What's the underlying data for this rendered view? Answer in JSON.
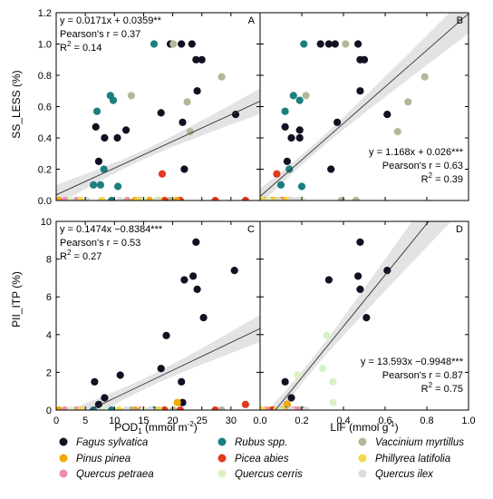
{
  "colors": {
    "Fagus sylvatica": "#111122",
    "Pinus pinea": "#f2a900",
    "Quercus petraea": "#f08cab",
    "Rubus spp.": "#1b7f7f",
    "Picea abies": "#e03a1e",
    "Quercus cerris": "#d9f2c4",
    "Vaccinium myrtillus": "#b5b898",
    "Phillyrea latifolia": "#f2d84a",
    "Quercus ilex": "#dedbdc"
  },
  "legend": [
    "Fagus sylvatica",
    "Rubus spp.",
    "Vaccinium myrtillus",
    "Pinus pinea",
    "Picea abies",
    "Phillyrea latifolia",
    "Quercus petraea",
    "Quercus cerris",
    "Quercus ilex"
  ],
  "ylabels": {
    "top": "SS_LESS (%)",
    "bottom": "PII_ITP (%)"
  },
  "xlabels": {
    "left_main": "POD",
    "left_sub": "1",
    "left_unit": " (mmol m",
    "left_sup": "-2",
    "left_close": ")",
    "right_main": "LIF (mmol g",
    "right_sup": "-1",
    "right_close": ")"
  },
  "chart_data": [
    {
      "id": "A",
      "type": "scatter",
      "xlabel": "POD1 (mmol m-2)",
      "ylabel": "SS_LESS (%)",
      "xlim": [
        0,
        35
      ],
      "ylim": [
        0,
        1.2
      ],
      "xticks": [
        0,
        5,
        10,
        15,
        20,
        25,
        30
      ],
      "yticks": [
        0.0,
        0.2,
        0.4,
        0.6,
        0.8,
        1.0,
        1.2
      ],
      "fit": {
        "slope": 0.0171,
        "intercept": 0.0359
      },
      "annotation": [
        "y = 0.0171x + 0.0359**",
        "Pearson's r = 0.37",
        "R",
        "2",
        " = 0.14"
      ],
      "ann_pos": "top-left",
      "points": [
        {
          "s": "Fagus sylvatica",
          "x": 6.8,
          "y": 0.47
        },
        {
          "s": "Fagus sylvatica",
          "x": 7.3,
          "y": 0.25
        },
        {
          "s": "Fagus sylvatica",
          "x": 8.3,
          "y": 0.4
        },
        {
          "s": "Fagus sylvatica",
          "x": 10.5,
          "y": 0.4
        },
        {
          "s": "Fagus sylvatica",
          "x": 12.0,
          "y": 0.45
        },
        {
          "s": "Fagus sylvatica",
          "x": 18.0,
          "y": 0.56
        },
        {
          "s": "Fagus sylvatica",
          "x": 19.6,
          "y": 1.0
        },
        {
          "s": "Fagus sylvatica",
          "x": 21.5,
          "y": 1.0
        },
        {
          "s": "Fagus sylvatica",
          "x": 21.7,
          "y": 0.5
        },
        {
          "s": "Fagus sylvatica",
          "x": 22.0,
          "y": 0.2
        },
        {
          "s": "Fagus sylvatica",
          "x": 23.3,
          "y": 1.0
        },
        {
          "s": "Fagus sylvatica",
          "x": 24.0,
          "y": 0.9
        },
        {
          "s": "Fagus sylvatica",
          "x": 24.2,
          "y": 0.7
        },
        {
          "s": "Fagus sylvatica",
          "x": 25.0,
          "y": 0.9
        },
        {
          "s": "Fagus sylvatica",
          "x": 30.8,
          "y": 0.55
        },
        {
          "s": "Rubus spp.",
          "x": 6.4,
          "y": 0.1
        },
        {
          "s": "Rubus spp.",
          "x": 7.0,
          "y": 0.57
        },
        {
          "s": "Rubus spp.",
          "x": 7.6,
          "y": 0.1
        },
        {
          "s": "Rubus spp.",
          "x": 8.2,
          "y": 0.2
        },
        {
          "s": "Rubus spp.",
          "x": 9.3,
          "y": 0.67
        },
        {
          "s": "Rubus spp.",
          "x": 9.8,
          "y": 0.64
        },
        {
          "s": "Rubus spp.",
          "x": 10.6,
          "y": 0.09
        },
        {
          "s": "Rubus spp.",
          "x": 16.8,
          "y": 1.0
        },
        {
          "s": "Rubus spp.",
          "x": 9.5,
          "y": 0.0
        },
        {
          "s": "Vaccinium myrtillus",
          "x": 12.9,
          "y": 0.67
        },
        {
          "s": "Vaccinium myrtillus",
          "x": 20.1,
          "y": 1.0
        },
        {
          "s": "Vaccinium myrtillus",
          "x": 22.5,
          "y": 0.63
        },
        {
          "s": "Vaccinium myrtillus",
          "x": 23.0,
          "y": 0.44
        },
        {
          "s": "Vaccinium myrtillus",
          "x": 28.4,
          "y": 0.79
        },
        {
          "s": "Vaccinium myrtillus",
          "x": 19.5,
          "y": 0.0
        },
        {
          "s": "Picea abies",
          "x": 18.2,
          "y": 0.17
        },
        {
          "s": "Picea abies",
          "x": 21.3,
          "y": 0.0
        },
        {
          "s": "Picea abies",
          "x": 27.3,
          "y": 0.0
        },
        {
          "s": "Picea abies",
          "x": 32.5,
          "y": 0.0
        },
        {
          "s": "Picea abies",
          "x": 18.6,
          "y": 0.0
        },
        {
          "s": "Pinus pinea",
          "x": 0.5,
          "y": 0.0
        },
        {
          "s": "Pinus pinea",
          "x": 20.7,
          "y": 0.0
        },
        {
          "s": "Pinus pinea",
          "x": 13.5,
          "y": 0.0
        },
        {
          "s": "Pinus pinea",
          "x": 16.0,
          "y": 0.0
        },
        {
          "s": "Quercus petraea",
          "x": 1.5,
          "y": 0.0
        },
        {
          "s": "Quercus petraea",
          "x": 3.5,
          "y": 0.0
        },
        {
          "s": "Quercus petraea",
          "x": 12.2,
          "y": 0.0
        },
        {
          "s": "Quercus petraea",
          "x": 14.5,
          "y": 0.0
        },
        {
          "s": "Quercus cerris",
          "x": 2.5,
          "y": 0.0
        },
        {
          "s": "Quercus cerris",
          "x": 8.0,
          "y": 0.0
        },
        {
          "s": "Quercus cerris",
          "x": 15.0,
          "y": 0.0
        },
        {
          "s": "Phillyrea latifolia",
          "x": 4.2,
          "y": 0.0
        },
        {
          "s": "Phillyrea latifolia",
          "x": 7.8,
          "y": 0.0
        },
        {
          "s": "Phillyrea latifolia",
          "x": 14.0,
          "y": 0.0
        },
        {
          "s": "Phillyrea latifolia",
          "x": 17.6,
          "y": 0.0
        },
        {
          "s": "Quercus ilex",
          "x": 5.2,
          "y": 0.0
        },
        {
          "s": "Quercus ilex",
          "x": 11.0,
          "y": 0.0
        },
        {
          "s": "Quercus ilex",
          "x": 17.2,
          "y": 0.0
        }
      ]
    },
    {
      "id": "B",
      "type": "scatter",
      "xlabel": "LIF (mmol g-1)",
      "ylabel": "SS_LESS (%)",
      "xlim": [
        0,
        1.0
      ],
      "ylim": [
        0,
        1.2
      ],
      "xticks": [
        0.0,
        0.2,
        0.4,
        0.6,
        0.8,
        1.0
      ],
      "yticks": [
        0.0,
        0.2,
        0.4,
        0.6,
        0.8,
        1.0,
        1.2
      ],
      "fit": {
        "slope": 1.168,
        "intercept": 0.026
      },
      "annotation": [
        "y = 1.168x + 0.026***",
        "Pearson's r = 0.63",
        "R",
        "2",
        " = 0.39"
      ],
      "ann_pos": "bottom-right",
      "points": [
        {
          "s": "Fagus sylvatica",
          "x": 0.12,
          "y": 0.47
        },
        {
          "s": "Fagus sylvatica",
          "x": 0.13,
          "y": 0.25
        },
        {
          "s": "Fagus sylvatica",
          "x": 0.15,
          "y": 0.4
        },
        {
          "s": "Fagus sylvatica",
          "x": 0.19,
          "y": 0.4
        },
        {
          "s": "Fagus sylvatica",
          "x": 0.19,
          "y": 0.45
        },
        {
          "s": "Fagus sylvatica",
          "x": 0.29,
          "y": 1.0
        },
        {
          "s": "Fagus sylvatica",
          "x": 0.33,
          "y": 1.0
        },
        {
          "s": "Fagus sylvatica",
          "x": 0.34,
          "y": 0.2
        },
        {
          "s": "Fagus sylvatica",
          "x": 0.36,
          "y": 1.0
        },
        {
          "s": "Fagus sylvatica",
          "x": 0.37,
          "y": 0.5
        },
        {
          "s": "Fagus sylvatica",
          "x": 0.47,
          "y": 1.0
        },
        {
          "s": "Fagus sylvatica",
          "x": 0.48,
          "y": 0.9
        },
        {
          "s": "Fagus sylvatica",
          "x": 0.48,
          "y": 0.7
        },
        {
          "s": "Fagus sylvatica",
          "x": 0.5,
          "y": 0.9
        },
        {
          "s": "Fagus sylvatica",
          "x": 0.61,
          "y": 0.55
        },
        {
          "s": "Rubus spp.",
          "x": 0.1,
          "y": 0.1
        },
        {
          "s": "Rubus spp.",
          "x": 0.12,
          "y": 0.57
        },
        {
          "s": "Rubus spp.",
          "x": 0.14,
          "y": 0.2
        },
        {
          "s": "Rubus spp.",
          "x": 0.16,
          "y": 0.67
        },
        {
          "s": "Rubus spp.",
          "x": 0.19,
          "y": 0.64
        },
        {
          "s": "Rubus spp.",
          "x": 0.2,
          "y": 0.09
        },
        {
          "s": "Rubus spp.",
          "x": 0.21,
          "y": 1.0
        },
        {
          "s": "Vaccinium myrtillus",
          "x": 0.22,
          "y": 0.67
        },
        {
          "s": "Vaccinium myrtillus",
          "x": 0.41,
          "y": 1.0
        },
        {
          "s": "Vaccinium myrtillus",
          "x": 0.66,
          "y": 0.44
        },
        {
          "s": "Vaccinium myrtillus",
          "x": 0.71,
          "y": 0.63
        },
        {
          "s": "Vaccinium myrtillus",
          "x": 0.79,
          "y": 0.79
        },
        {
          "s": "Vaccinium myrtillus",
          "x": 0.39,
          "y": 0.0
        },
        {
          "s": "Vaccinium myrtillus",
          "x": 0.46,
          "y": 0.0
        },
        {
          "s": "Picea abies",
          "x": 0.08,
          "y": 0.17
        },
        {
          "s": "Picea abies",
          "x": 0.06,
          "y": 0.0
        },
        {
          "s": "Picea abies",
          "x": 0.1,
          "y": 0.0
        },
        {
          "s": "Pinus pinea",
          "x": 0.02,
          "y": 0.0
        },
        {
          "s": "Pinus pinea",
          "x": 0.05,
          "y": 0.0
        },
        {
          "s": "Pinus pinea",
          "x": 0.12,
          "y": 0.0
        },
        {
          "s": "Quercus petraea",
          "x": 0.03,
          "y": 0.0
        },
        {
          "s": "Quercus petraea",
          "x": 0.08,
          "y": 0.0
        },
        {
          "s": "Quercus petraea",
          "x": 0.14,
          "y": 0.0
        },
        {
          "s": "Quercus cerris",
          "x": 0.04,
          "y": 0.0
        },
        {
          "s": "Quercus cerris",
          "x": 0.17,
          "y": 0.0
        },
        {
          "s": "Quercus cerris",
          "x": 0.2,
          "y": 0.0
        },
        {
          "s": "Phillyrea latifolia",
          "x": 0.01,
          "y": 0.0
        },
        {
          "s": "Phillyrea latifolia",
          "x": 0.07,
          "y": 0.0
        },
        {
          "s": "Phillyrea latifolia",
          "x": 0.13,
          "y": 0.0
        },
        {
          "s": "Quercus ilex",
          "x": 0.09,
          "y": 0.0
        },
        {
          "s": "Quercus ilex",
          "x": 0.15,
          "y": 0.0
        },
        {
          "s": "Quercus ilex",
          "x": 0.18,
          "y": 0.0
        }
      ]
    },
    {
      "id": "C",
      "type": "scatter",
      "xlabel": "POD1 (mmol m-2)",
      "ylabel": "PII_ITP (%)",
      "xlim": [
        0,
        35
      ],
      "ylim": [
        0,
        10
      ],
      "xticks": [
        0,
        5,
        10,
        15,
        20,
        25,
        30
      ],
      "yticks": [
        0,
        2,
        4,
        6,
        8,
        10
      ],
      "fit": {
        "slope": 0.1474,
        "intercept": -0.8384
      },
      "annotation": [
        "y = 0.1474x −0.8384***",
        "Pearson's r = 0.53",
        "R",
        "2",
        " = 0.27"
      ],
      "ann_pos": "top-left",
      "points": [
        {
          "s": "Fagus sylvatica",
          "x": 6.6,
          "y": 1.5
        },
        {
          "s": "Fagus sylvatica",
          "x": 7.3,
          "y": 0.3
        },
        {
          "s": "Fagus sylvatica",
          "x": 8.3,
          "y": 0.65
        },
        {
          "s": "Fagus sylvatica",
          "x": 11.0,
          "y": 1.85
        },
        {
          "s": "Fagus sylvatica",
          "x": 18.0,
          "y": 2.2
        },
        {
          "s": "Fagus sylvatica",
          "x": 18.9,
          "y": 3.95
        },
        {
          "s": "Fagus sylvatica",
          "x": 21.5,
          "y": 1.5
        },
        {
          "s": "Fagus sylvatica",
          "x": 21.7,
          "y": 0.4
        },
        {
          "s": "Fagus sylvatica",
          "x": 22.0,
          "y": 6.9
        },
        {
          "s": "Fagus sylvatica",
          "x": 23.5,
          "y": 7.1
        },
        {
          "s": "Fagus sylvatica",
          "x": 24.0,
          "y": 8.9
        },
        {
          "s": "Fagus sylvatica",
          "x": 24.2,
          "y": 6.4
        },
        {
          "s": "Fagus sylvatica",
          "x": 25.3,
          "y": 4.9
        },
        {
          "s": "Fagus sylvatica",
          "x": 30.6,
          "y": 7.4
        },
        {
          "s": "Pinus pinea",
          "x": 20.8,
          "y": 0.4
        },
        {
          "s": "Pinus pinea",
          "x": 0.5,
          "y": 0.0
        },
        {
          "s": "Pinus pinea",
          "x": 13.5,
          "y": 0.0
        },
        {
          "s": "Picea abies",
          "x": 32.5,
          "y": 0.3
        },
        {
          "s": "Picea abies",
          "x": 21.3,
          "y": 0.0
        },
        {
          "s": "Picea abies",
          "x": 27.3,
          "y": 0.0
        },
        {
          "s": "Picea abies",
          "x": 18.6,
          "y": 0.0
        },
        {
          "s": "Rubus spp.",
          "x": 9.5,
          "y": 0.0
        },
        {
          "s": "Rubus spp.",
          "x": 16.8,
          "y": 0.0
        },
        {
          "s": "Rubus spp.",
          "x": 6.4,
          "y": 0.0
        },
        {
          "s": "Vaccinium myrtillus",
          "x": 20.1,
          "y": 0.0
        },
        {
          "s": "Vaccinium myrtillus",
          "x": 28.4,
          "y": 0.0
        },
        {
          "s": "Vaccinium myrtillus",
          "x": 12.9,
          "y": 0.0
        },
        {
          "s": "Quercus petraea",
          "x": 1.5,
          "y": 0.0
        },
        {
          "s": "Quercus petraea",
          "x": 3.5,
          "y": 0.0
        },
        {
          "s": "Quercus petraea",
          "x": 14.5,
          "y": 0.0
        },
        {
          "s": "Quercus cerris",
          "x": 2.5,
          "y": 0.0
        },
        {
          "s": "Quercus cerris",
          "x": 8.0,
          "y": 0.0
        },
        {
          "s": "Quercus cerris",
          "x": 15.0,
          "y": 0.0
        },
        {
          "s": "Phillyrea latifolia",
          "x": 4.2,
          "y": 0.0
        },
        {
          "s": "Phillyrea latifolia",
          "x": 10.8,
          "y": 0.0
        },
        {
          "s": "Phillyrea latifolia",
          "x": 17.6,
          "y": 0.0
        },
        {
          "s": "Quercus ilex",
          "x": 5.2,
          "y": 0.0
        },
        {
          "s": "Quercus ilex",
          "x": 12.0,
          "y": 0.0
        },
        {
          "s": "Quercus ilex",
          "x": 16.2,
          "y": 0.0
        }
      ]
    },
    {
      "id": "D",
      "type": "scatter",
      "xlabel": "LIF (mmol g-1)",
      "ylabel": "PII_ITP (%)",
      "xlim": [
        0,
        1.0
      ],
      "ylim": [
        0,
        10
      ],
      "xticks": [
        0.0,
        0.2,
        0.4,
        0.6,
        0.8,
        1.0
      ],
      "yticks": [
        0,
        2,
        4,
        6,
        8,
        10
      ],
      "fit": {
        "slope": 13.593,
        "intercept": -0.9948
      },
      "annotation": [
        "y = 13.593x −0.9948***",
        "Pearson's r = 0.87",
        "R",
        "2",
        " = 0.75"
      ],
      "ann_pos": "bottom-right",
      "points": [
        {
          "s": "Fagus sylvatica",
          "x": 0.12,
          "y": 1.5
        },
        {
          "s": "Fagus sylvatica",
          "x": 0.13,
          "y": 0.3
        },
        {
          "s": "Fagus sylvatica",
          "x": 0.15,
          "y": 0.65
        },
        {
          "s": "Fagus sylvatica",
          "x": 0.33,
          "y": 6.9
        },
        {
          "s": "Fagus sylvatica",
          "x": 0.47,
          "y": 7.1
        },
        {
          "s": "Fagus sylvatica",
          "x": 0.48,
          "y": 8.9
        },
        {
          "s": "Fagus sylvatica",
          "x": 0.48,
          "y": 6.4
        },
        {
          "s": "Fagus sylvatica",
          "x": 0.51,
          "y": 4.9
        },
        {
          "s": "Fagus sylvatica",
          "x": 0.61,
          "y": 7.4
        },
        {
          "s": "Quercus cerris",
          "x": 0.18,
          "y": 1.85
        },
        {
          "s": "Quercus cerris",
          "x": 0.3,
          "y": 2.2
        },
        {
          "s": "Quercus cerris",
          "x": 0.32,
          "y": 3.95
        },
        {
          "s": "Quercus cerris",
          "x": 0.35,
          "y": 1.5
        },
        {
          "s": "Quercus cerris",
          "x": 0.35,
          "y": 0.4
        },
        {
          "s": "Pinus pinea",
          "x": 0.13,
          "y": 0.3
        },
        {
          "s": "Pinus pinea",
          "x": 0.05,
          "y": 0.0
        },
        {
          "s": "Picea abies",
          "x": 0.06,
          "y": 0.0
        },
        {
          "s": "Picea abies",
          "x": 0.16,
          "y": 0.0
        },
        {
          "s": "Picea abies",
          "x": 0.1,
          "y": 0.0
        },
        {
          "s": "Rubus spp.",
          "x": 0.12,
          "y": 0.0
        },
        {
          "s": "Rubus spp.",
          "x": 0.2,
          "y": 0.0
        },
        {
          "s": "Vaccinium myrtillus",
          "x": 0.17,
          "y": 0.0
        },
        {
          "s": "Vaccinium myrtillus",
          "x": 0.19,
          "y": 0.0
        },
        {
          "s": "Quercus petraea",
          "x": 0.03,
          "y": 0.0
        },
        {
          "s": "Quercus petraea",
          "x": 0.14,
          "y": 0.0
        },
        {
          "s": "Quercus petraea",
          "x": 0.18,
          "y": 0.0
        },
        {
          "s": "Phillyrea latifolia",
          "x": 0.01,
          "y": 0.0
        },
        {
          "s": "Phillyrea latifolia",
          "x": 0.08,
          "y": 0.0
        },
        {
          "s": "Phillyrea latifolia",
          "x": 0.11,
          "y": 0.0
        },
        {
          "s": "Quercus ilex",
          "x": 0.09,
          "y": 0.0
        },
        {
          "s": "Quercus ilex",
          "x": 0.15,
          "y": 0.0
        },
        {
          "s": "Quercus ilex",
          "x": 0.22,
          "y": 0.0
        }
      ]
    }
  ]
}
